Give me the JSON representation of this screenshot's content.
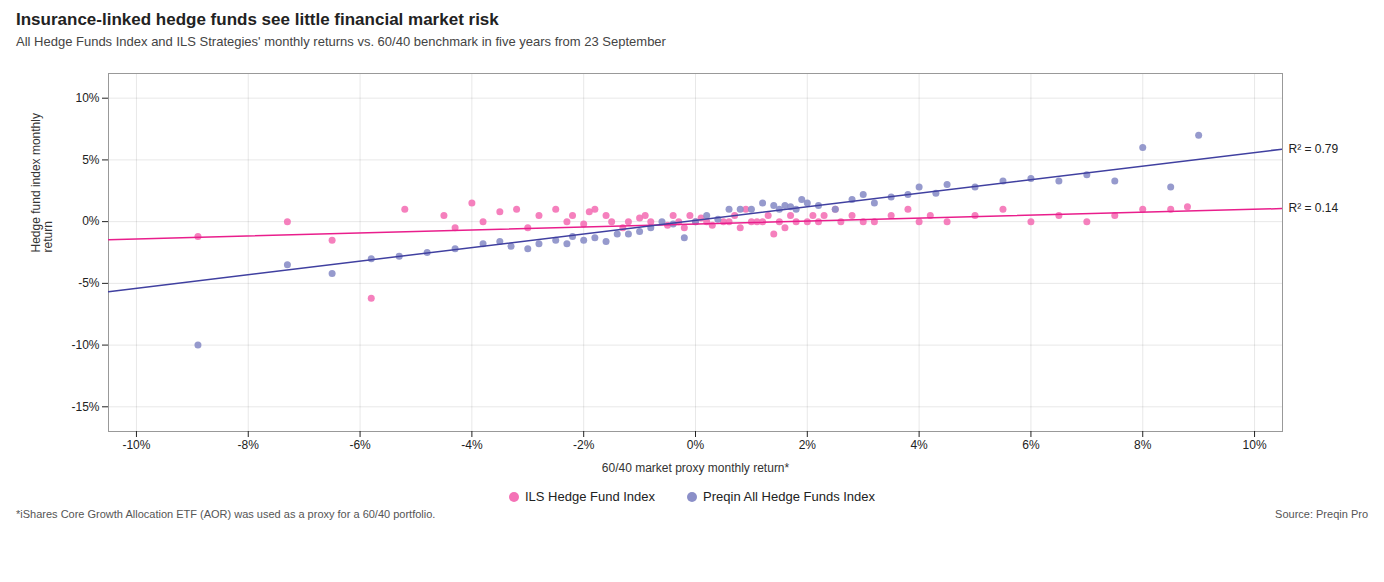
{
  "chart_data": {
    "type": "scatter",
    "title": "Insurance-linked hedge funds see little financial market risk",
    "subtitle": "All Hedge Funds Index and ILS Strategies' monthly returns vs. 60/40 benchmark in five years from 23 September",
    "xlabel": "60/40 market proxy monthly return*",
    "ylabel": "Hedge fund index monthly\nreturn",
    "footnote": "*iShares Core Growth Allocation ETF (AOR) was used as a proxy for a 60/40 portfolio.",
    "source": "Source: Preqin Pro",
    "xlim": [
      -0.105,
      0.105
    ],
    "ylim": [
      -0.17,
      0.12
    ],
    "xticks": [
      {
        "value": -0.1,
        "label": "-10%"
      },
      {
        "value": -0.08,
        "label": "-8%"
      },
      {
        "value": -0.06,
        "label": "-6%"
      },
      {
        "value": -0.04,
        "label": "-4%"
      },
      {
        "value": -0.02,
        "label": "-2%"
      },
      {
        "value": 0.0,
        "label": "0%"
      },
      {
        "value": 0.02,
        "label": "2%"
      },
      {
        "value": 0.04,
        "label": "4%"
      },
      {
        "value": 0.06,
        "label": "6%"
      },
      {
        "value": 0.08,
        "label": "8%"
      },
      {
        "value": 0.1,
        "label": "10%"
      }
    ],
    "yticks": [
      {
        "value": -0.15,
        "label": "-15%"
      },
      {
        "value": -0.1,
        "label": "-10%"
      },
      {
        "value": -0.05,
        "label": "-5%"
      },
      {
        "value": 0.0,
        "label": "0%"
      },
      {
        "value": 0.05,
        "label": "5%"
      },
      {
        "value": 0.1,
        "label": "10%"
      }
    ],
    "grid": true,
    "legend": "bottom",
    "series": [
      {
        "name": "ILS Hedge Fund Index",
        "color": "#F472B6",
        "x": [
          -0.089,
          -0.073,
          -0.065,
          -0.058,
          -0.052,
          -0.045,
          -0.043,
          -0.04,
          -0.038,
          -0.035,
          -0.032,
          -0.03,
          -0.028,
          -0.025,
          -0.023,
          -0.022,
          -0.02,
          -0.019,
          -0.018,
          -0.016,
          -0.015,
          -0.013,
          -0.012,
          -0.01,
          -0.009,
          -0.008,
          -0.005,
          -0.004,
          -0.003,
          -0.002,
          -0.001,
          0.0,
          0.001,
          0.002,
          0.003,
          0.005,
          0.006,
          0.007,
          0.008,
          0.009,
          0.01,
          0.011,
          0.012,
          0.013,
          0.014,
          0.015,
          0.016,
          0.017,
          0.018,
          0.02,
          0.021,
          0.022,
          0.023,
          0.025,
          0.026,
          0.028,
          0.03,
          0.032,
          0.035,
          0.038,
          0.04,
          0.042,
          0.045,
          0.05,
          0.055,
          0.06,
          0.065,
          0.07,
          0.075,
          0.08,
          0.085,
          0.088
        ],
        "values": [
          -0.012,
          0.0,
          -0.015,
          -0.062,
          0.01,
          0.005,
          -0.005,
          0.015,
          0.0,
          0.008,
          0.01,
          -0.005,
          0.005,
          0.01,
          0.0,
          0.005,
          -0.002,
          0.008,
          0.01,
          0.005,
          0.0,
          -0.005,
          0.0,
          0.003,
          0.005,
          0.0,
          -0.003,
          0.005,
          0.0,
          -0.005,
          0.005,
          0.0,
          0.003,
          0.0,
          -0.003,
          0.0,
          0.0,
          0.005,
          -0.005,
          0.01,
          0.0,
          0.0,
          0.0,
          0.005,
          -0.01,
          0.0,
          -0.005,
          0.005,
          0.0,
          0.0,
          0.005,
          0.0,
          0.005,
          0.01,
          0.0,
          0.005,
          0.0,
          0.0,
          0.005,
          0.01,
          0.0,
          0.005,
          0.0,
          0.005,
          0.01,
          0.0,
          0.005,
          0.0,
          0.005,
          0.01,
          0.01,
          0.012
        ],
        "fit": {
          "color": "#E91E8C",
          "x": [
            -0.105,
            0.105
          ],
          "values": [
            -0.0146,
            0.0106
          ],
          "label": "R² = 0.14"
        }
      },
      {
        "name": "Preqin All Hedge Funds Index",
        "color": "#8B8FC8",
        "x": [
          -0.089,
          -0.073,
          -0.065,
          -0.058,
          -0.053,
          -0.048,
          -0.043,
          -0.038,
          -0.035,
          -0.033,
          -0.03,
          -0.028,
          -0.025,
          -0.023,
          -0.022,
          -0.02,
          -0.018,
          -0.016,
          -0.014,
          -0.012,
          -0.01,
          -0.008,
          -0.006,
          -0.004,
          -0.002,
          0.0,
          0.002,
          0.004,
          0.006,
          0.008,
          0.01,
          0.012,
          0.014,
          0.015,
          0.016,
          0.017,
          0.018,
          0.019,
          0.02,
          0.022,
          0.025,
          0.028,
          0.03,
          0.032,
          0.035,
          0.038,
          0.04,
          0.043,
          0.045,
          0.05,
          0.055,
          0.06,
          0.065,
          0.07,
          0.075,
          0.08,
          0.085,
          0.09
        ],
        "values": [
          -0.1,
          -0.035,
          -0.042,
          -0.03,
          -0.028,
          -0.025,
          -0.022,
          -0.018,
          -0.016,
          -0.02,
          -0.022,
          -0.018,
          -0.015,
          -0.018,
          -0.012,
          -0.015,
          -0.013,
          -0.016,
          -0.01,
          -0.01,
          -0.008,
          -0.005,
          0.0,
          -0.002,
          -0.013,
          0.0,
          0.005,
          0.002,
          0.01,
          0.01,
          0.01,
          0.015,
          0.013,
          0.01,
          0.013,
          0.012,
          0.01,
          0.018,
          0.015,
          0.013,
          0.01,
          0.018,
          0.022,
          0.015,
          0.02,
          0.022,
          0.028,
          0.023,
          0.03,
          0.028,
          0.033,
          0.035,
          0.033,
          0.038,
          0.033,
          0.06,
          0.028,
          0.07
        ],
        "fit": {
          "color": "#4040A0",
          "x": [
            -0.105,
            0.105
          ],
          "values": [
            -0.05675,
            0.05875
          ],
          "label": "R² = 0.79"
        }
      }
    ]
  }
}
